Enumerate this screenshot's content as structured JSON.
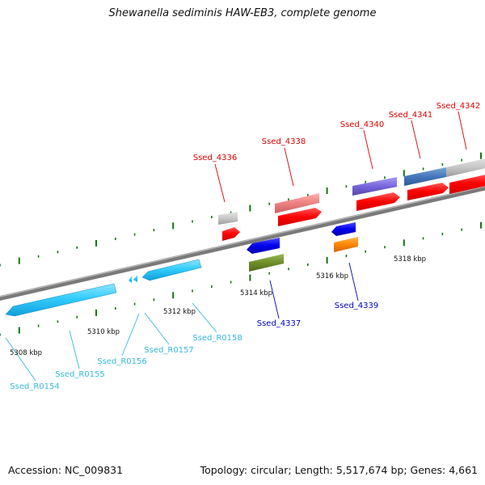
{
  "title": "Shewanella sediminis HAW-EB3, complete genome",
  "footer": {
    "accession": "Accession: NC_009831",
    "summary": "Topology: circular; Length: 5,517,674 bp; Genes: 4,661"
  },
  "colors": {
    "forward_label": "#dd0000",
    "reverse_label": "#0000cc",
    "rna_label": "#33bbdd",
    "backbone": "#888888",
    "tick": "#117711"
  },
  "scale_labels": [
    "5308 kbp",
    "5310 kbp",
    "5312 kbp",
    "5314 kbp",
    "5316 kbp",
    "5318 kbp"
  ],
  "features": [
    {
      "id": "Ssed_4336",
      "label": "Ssed_4336",
      "strand": "forward"
    },
    {
      "id": "Ssed_4337",
      "label": "Ssed_4337",
      "strand": "reverse"
    },
    {
      "id": "Ssed_4338",
      "label": "Ssed_4338",
      "strand": "forward"
    },
    {
      "id": "Ssed_4339",
      "label": "Ssed_4339",
      "strand": "reverse"
    },
    {
      "id": "Ssed_4340",
      "label": "Ssed_4340",
      "strand": "forward"
    },
    {
      "id": "Ssed_4341",
      "label": "Ssed_4341",
      "strand": "forward"
    },
    {
      "id": "Ssed_4342",
      "label": "Ssed_4342",
      "strand": "forward"
    },
    {
      "id": "Ssed_R0154",
      "label": "Ssed_R0154",
      "strand": "reverse"
    },
    {
      "id": "Ssed_R0155",
      "label": "Ssed_R0155",
      "strand": "reverse"
    },
    {
      "id": "Ssed_R0156",
      "label": "Ssed_R0156",
      "strand": "reverse"
    },
    {
      "id": "Ssed_R0157",
      "label": "Ssed_R0157",
      "strand": "reverse"
    },
    {
      "id": "Ssed_R0158",
      "label": "Ssed_R0158",
      "strand": "reverse"
    }
  ]
}
